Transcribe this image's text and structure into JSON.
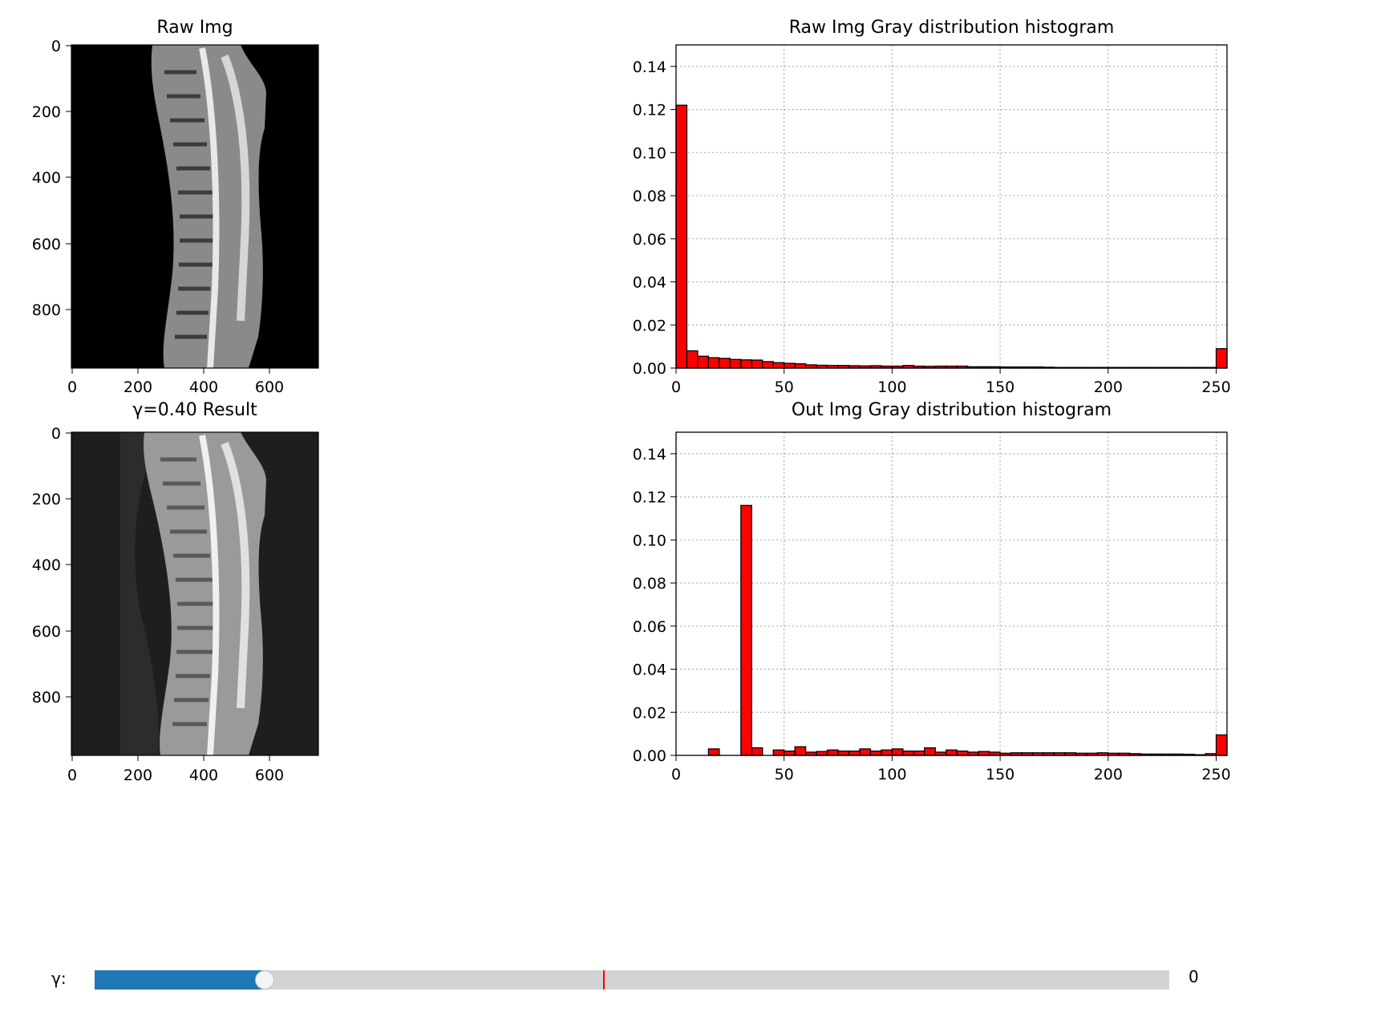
{
  "window": {
    "title": ""
  },
  "images": [
    {
      "title": "Raw Img",
      "xticks": [
        "0",
        "200",
        "400",
        "600"
      ],
      "yticks": [
        "0",
        "200",
        "400",
        "600",
        "800"
      ],
      "background": "#000000"
    },
    {
      "title": "γ=0.40 Result",
      "xticks": [
        "0",
        "200",
        "400",
        "600"
      ],
      "yticks": [
        "0",
        "200",
        "400",
        "600",
        "800"
      ],
      "background": "#1e1e1e"
    }
  ],
  "slider": {
    "label": "γ:",
    "value_text": "0",
    "position_fraction": 0.158,
    "marker_fraction": 0.473,
    "fill_color": "#1f77b4",
    "track_color": "#d3d3d3",
    "marker_color": "#ff0000"
  },
  "chart_data": [
    {
      "type": "bar",
      "title": "Raw Img Gray distribution histogram",
      "xlabel": "",
      "ylabel": "",
      "xlim": [
        0,
        255
      ],
      "ylim": [
        0,
        0.15
      ],
      "xticks": [
        0,
        50,
        100,
        150,
        200,
        250
      ],
      "yticks": [
        0.0,
        0.02,
        0.04,
        0.06,
        0.08,
        0.1,
        0.12,
        0.14
      ],
      "grid": true,
      "bar_color": "#ff0000",
      "edge_color": "#000000",
      "bin_width": 5,
      "bin_starts": [
        0,
        5,
        10,
        15,
        20,
        25,
        30,
        35,
        40,
        45,
        50,
        55,
        60,
        65,
        70,
        75,
        80,
        85,
        90,
        95,
        100,
        105,
        110,
        115,
        120,
        125,
        130,
        135,
        140,
        145,
        150,
        155,
        160,
        165,
        170,
        175,
        180,
        185,
        190,
        195,
        200,
        205,
        210,
        215,
        220,
        225,
        230,
        235,
        240,
        245,
        250
      ],
      "values": [
        0.122,
        0.008,
        0.0055,
        0.0048,
        0.0045,
        0.004,
        0.0038,
        0.0037,
        0.003,
        0.0025,
        0.0022,
        0.002,
        0.0015,
        0.0013,
        0.0012,
        0.0012,
        0.0011,
        0.001,
        0.0011,
        0.0009,
        0.0009,
        0.0012,
        0.0009,
        0.0008,
        0.0009,
        0.0009,
        0.0009,
        0.0006,
        0.0006,
        0.0006,
        0.0005,
        0.0005,
        0.0005,
        0.0005,
        0.0004,
        0.0003,
        0.0003,
        0.0003,
        0.0003,
        0.0003,
        0.0003,
        0.0003,
        0.0003,
        0.0003,
        0.0003,
        0.0003,
        0.0003,
        0.0003,
        0.0003,
        0.0003,
        0.009
      ]
    },
    {
      "type": "bar",
      "title": "Out Img Gray distribution histogram",
      "xlabel": "",
      "ylabel": "",
      "xlim": [
        0,
        255
      ],
      "ylim": [
        0,
        0.15
      ],
      "xticks": [
        0,
        50,
        100,
        150,
        200,
        250
      ],
      "yticks": [
        0.0,
        0.02,
        0.04,
        0.06,
        0.08,
        0.1,
        0.12,
        0.14
      ],
      "grid": true,
      "bar_color": "#ff0000",
      "edge_color": "#000000",
      "bin_width": 5,
      "bin_starts": [
        0,
        5,
        10,
        15,
        20,
        25,
        30,
        35,
        40,
        45,
        50,
        55,
        60,
        65,
        70,
        75,
        80,
        85,
        90,
        95,
        100,
        105,
        110,
        115,
        120,
        125,
        130,
        135,
        140,
        145,
        150,
        155,
        160,
        165,
        170,
        175,
        180,
        185,
        190,
        195,
        200,
        205,
        210,
        215,
        220,
        225,
        230,
        235,
        240,
        245,
        250
      ],
      "values": [
        0,
        0,
        0,
        0.003,
        0,
        0,
        0.116,
        0.0035,
        0,
        0.0025,
        0.002,
        0.004,
        0.0015,
        0.0018,
        0.0025,
        0.002,
        0.002,
        0.003,
        0.002,
        0.0025,
        0.003,
        0.002,
        0.002,
        0.0035,
        0.0015,
        0.0025,
        0.002,
        0.0015,
        0.0018,
        0.0015,
        0.001,
        0.0012,
        0.0012,
        0.0012,
        0.0012,
        0.0012,
        0.0012,
        0.001,
        0.001,
        0.0012,
        0.001,
        0.001,
        0.0008,
        0.0006,
        0.0006,
        0.0006,
        0.0006,
        0.0005,
        0.0003,
        0.0008,
        0.0095
      ]
    }
  ]
}
